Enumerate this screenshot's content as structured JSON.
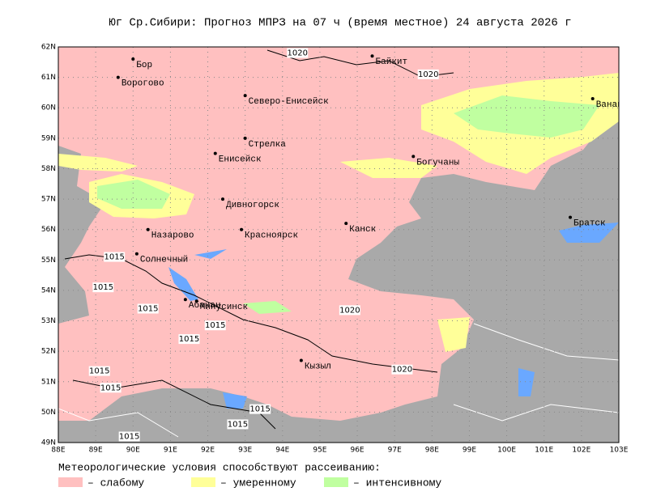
{
  "title": "Юг Ср.Сибири:  Прогноз МПРЗ на 07 ч (время местное) 24 августа 2026 г",
  "map": {
    "lon_range": [
      88,
      103
    ],
    "lat_range": [
      49,
      62
    ],
    "lat_ticks": [
      {
        "value": 49,
        "label": "49N"
      },
      {
        "value": 50,
        "label": "50N"
      },
      {
        "value": 51,
        "label": "51N"
      },
      {
        "value": 52,
        "label": "52N"
      },
      {
        "value": 53,
        "label": "53N"
      },
      {
        "value": 54,
        "label": "54N"
      },
      {
        "value": 55,
        "label": "55N"
      },
      {
        "value": 56,
        "label": "56N"
      },
      {
        "value": 57,
        "label": "57N"
      },
      {
        "value": 58,
        "label": "58N"
      },
      {
        "value": 59,
        "label": "59N"
      },
      {
        "value": 60,
        "label": "60N"
      },
      {
        "value": 61,
        "label": "61N"
      },
      {
        "value": 62,
        "label": "62N"
      }
    ],
    "lon_ticks": [
      {
        "value": 88,
        "label": "88E"
      },
      {
        "value": 89,
        "label": "89E"
      },
      {
        "value": 90,
        "label": "90E"
      },
      {
        "value": 91,
        "label": "91E"
      },
      {
        "value": 92,
        "label": "92E"
      },
      {
        "value": 93,
        "label": "93E"
      },
      {
        "value": 94,
        "label": "94E"
      },
      {
        "value": 95,
        "label": "95E"
      },
      {
        "value": 96,
        "label": "96E"
      },
      {
        "value": 97,
        "label": "97E"
      },
      {
        "value": 98,
        "label": "98E"
      },
      {
        "value": 99,
        "label": "99E"
      },
      {
        "value": 100,
        "label": "100E"
      },
      {
        "value": 101,
        "label": "101E"
      },
      {
        "value": 102,
        "label": "102E"
      },
      {
        "value": 103,
        "label": "103E"
      }
    ],
    "cities": [
      {
        "name": "Бор",
        "lon": 90.0,
        "lat": 61.6
      },
      {
        "name": "Ворогово",
        "lon": 89.6,
        "lat": 61.0
      },
      {
        "name": "Северо-Енисейск",
        "lon": 93.0,
        "lat": 60.4
      },
      {
        "name": "Байкит",
        "lon": 96.4,
        "lat": 61.7
      },
      {
        "name": "Ванавара",
        "lon": 102.3,
        "lat": 60.3
      },
      {
        "name": "Стрелка",
        "lon": 93.0,
        "lat": 59.0
      },
      {
        "name": "Енисейск",
        "lon": 92.2,
        "lat": 58.5
      },
      {
        "name": "Богучаны",
        "lon": 97.5,
        "lat": 58.4
      },
      {
        "name": "Дивногорск",
        "lon": 92.4,
        "lat": 57.0
      },
      {
        "name": "Назарово",
        "lon": 90.4,
        "lat": 56.0
      },
      {
        "name": "Красноярск",
        "lon": 92.9,
        "lat": 56.0
      },
      {
        "name": "Канск",
        "lon": 95.7,
        "lat": 56.2
      },
      {
        "name": "Братск",
        "lon": 101.7,
        "lat": 56.4
      },
      {
        "name": "Солнечный",
        "lon": 90.1,
        "lat": 55.2
      },
      {
        "name": "Абакан",
        "lon": 91.4,
        "lat": 53.7
      },
      {
        "name": "Минусинск",
        "lon": 91.7,
        "lat": 53.65
      },
      {
        "name": "Кызыл",
        "lon": 94.5,
        "lat": 51.7
      }
    ],
    "isobar_labels": [
      {
        "value": 1020,
        "lon": 94.4,
        "lat": 61.8
      },
      {
        "value": 1020,
        "lon": 97.9,
        "lat": 61.1
      },
      {
        "value": 1015,
        "lon": 89.5,
        "lat": 55.1
      },
      {
        "value": 1015,
        "lon": 89.2,
        "lat": 54.1
      },
      {
        "value": 1015,
        "lon": 90.4,
        "lat": 53.4
      },
      {
        "value": 1015,
        "lon": 92.2,
        "lat": 52.85
      },
      {
        "value": 1015,
        "lon": 91.5,
        "lat": 52.4
      },
      {
        "value": 1020,
        "lon": 95.8,
        "lat": 53.35
      },
      {
        "value": 1020,
        "lon": 97.2,
        "lat": 51.4
      },
      {
        "value": 1015,
        "lon": 89.1,
        "lat": 51.35
      },
      {
        "value": 1015,
        "lon": 89.4,
        "lat": 50.8
      },
      {
        "value": 1015,
        "lon": 93.4,
        "lat": 50.1
      },
      {
        "value": 1015,
        "lon": 92.8,
        "lat": 49.6
      },
      {
        "value": 1015,
        "lon": 89.9,
        "lat": 49.2
      }
    ]
  },
  "legend": {
    "title": "Метеорологические условия способствуют рассеиванию:",
    "items": [
      {
        "label": "– слабому",
        "color": "#ffc0c0"
      },
      {
        "label": "– умеренному",
        "color": "#ffff99"
      },
      {
        "label": "– интенсивному",
        "color": "#c0ffa0"
      }
    ]
  }
}
